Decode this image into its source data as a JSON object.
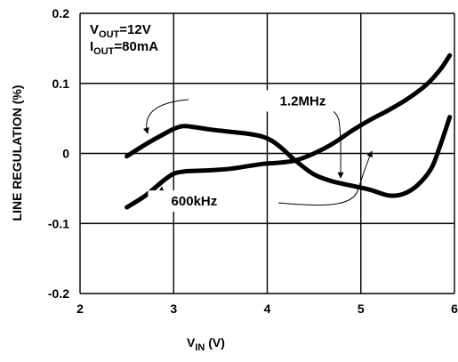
{
  "chart_data": {
    "type": "line",
    "title": "",
    "xlabel": {
      "main": "V",
      "sub": "IN",
      "unit": " (V)"
    },
    "ylabel": "LINE REGULATION (%)",
    "xlim": [
      2,
      6
    ],
    "ylim": [
      -0.2,
      0.2
    ],
    "x_ticks": [
      "2",
      "3",
      "4",
      "5",
      "6"
    ],
    "y_ticks": [
      "0.2",
      "0.1",
      "0",
      "-0.1",
      "-0.2"
    ],
    "grid": true,
    "legend": "none",
    "conditions": [
      {
        "main": "V",
        "sub": "OUT",
        "rest": "=12V"
      },
      {
        "main": "I",
        "sub": "OUT",
        "rest": "=80mA"
      }
    ],
    "series": [
      {
        "name": "1.2MHz",
        "x": [
          2.5,
          2.7,
          2.9,
          3.0,
          3.1,
          3.2,
          3.4,
          3.6,
          3.8,
          3.95,
          4.05,
          4.15,
          4.3,
          4.5,
          4.7,
          4.9,
          5.1,
          5.3,
          5.5,
          5.7,
          5.85,
          5.95
        ],
        "y": [
          -0.077,
          -0.06,
          -0.038,
          -0.029,
          -0.026,
          -0.025,
          -0.024,
          -0.022,
          -0.018,
          -0.015,
          -0.014,
          -0.013,
          -0.01,
          0.0,
          0.014,
          0.032,
          0.048,
          0.062,
          0.078,
          0.098,
          0.12,
          0.14
        ]
      },
      {
        "name": "600kHz",
        "x": [
          2.5,
          2.7,
          2.9,
          3.0,
          3.1,
          3.2,
          3.4,
          3.6,
          3.8,
          3.95,
          4.05,
          4.15,
          4.3,
          4.5,
          4.7,
          4.9,
          5.1,
          5.3,
          5.45,
          5.6,
          5.75,
          5.85,
          5.95
        ],
        "y": [
          -0.004,
          0.013,
          0.028,
          0.035,
          0.039,
          0.038,
          0.034,
          0.031,
          0.028,
          0.024,
          0.018,
          0.008,
          -0.01,
          -0.03,
          -0.04,
          -0.046,
          -0.052,
          -0.06,
          -0.058,
          -0.046,
          -0.022,
          0.012,
          0.052
        ]
      }
    ],
    "annotations": [
      {
        "text": "1.2MHz",
        "x": 4.38,
        "y": 0.075
      },
      {
        "text": "600kHz",
        "x": 3.22,
        "y": -0.068
      }
    ]
  }
}
